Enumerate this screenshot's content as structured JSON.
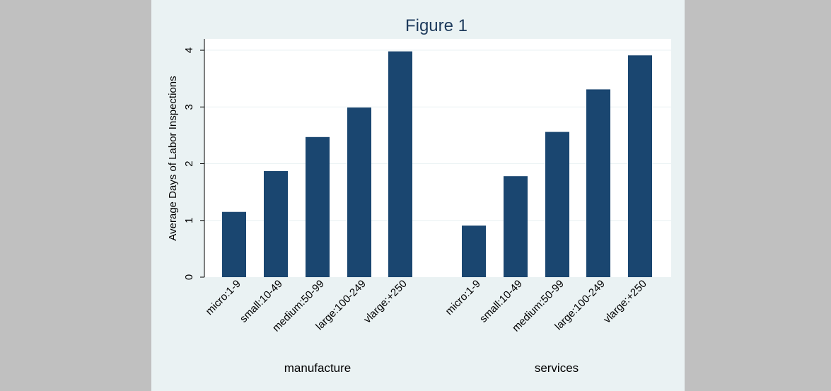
{
  "colors": {
    "page_background": "#c0c0c0",
    "figure_background": "#eaf2f3",
    "plot_background": "#ffffff",
    "bar_fill": "#1a4670",
    "title_color": "#1e3b5c",
    "grid_color": "#eaf2f3"
  },
  "chart_data": {
    "type": "bar",
    "title": "Figure 1",
    "ylabel": "Average Days of Labor Inspections",
    "ylim": [
      0,
      4.2
    ],
    "yticks": [
      "0",
      "1",
      "2",
      "3",
      "4"
    ],
    "grid": true,
    "legend": "none",
    "groups": [
      {
        "label": "manufacture",
        "categories": [
          "micro:1-9",
          "small:10-49",
          "medium:50-99",
          "large:100-249",
          "vlarge:+250"
        ],
        "values": [
          1.15,
          1.87,
          2.47,
          2.99,
          3.98
        ]
      },
      {
        "label": "services",
        "categories": [
          "micro:1-9",
          "small:10-49",
          "medium:50-99",
          "large:100-249",
          "vlarge:+250"
        ],
        "values": [
          0.91,
          1.78,
          2.56,
          3.31,
          3.91
        ]
      }
    ]
  }
}
